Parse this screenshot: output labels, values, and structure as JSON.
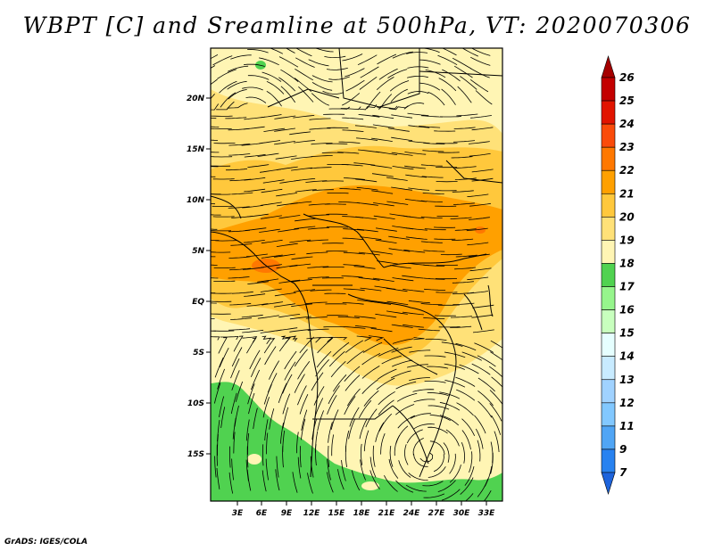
{
  "title": "WBPT [C] and Sreamline at 500hPa, VT: 2020070306",
  "footer": "GrADS: IGES/COLA",
  "map": {
    "lon_ticks": [
      "3E",
      "6E",
      "9E",
      "12E",
      "15E",
      "18E",
      "21E",
      "24E",
      "27E",
      "30E",
      "33E"
    ],
    "lat_ticks": [
      "20N",
      "15N",
      "10N",
      "5N",
      "EQ",
      "5S",
      "10S",
      "15S"
    ],
    "variable": "WBPT [C]",
    "level": "500hPa"
  },
  "colorbar": {
    "labels": [
      "7",
      "9",
      "11",
      "12",
      "13",
      "14",
      "15",
      "16",
      "17",
      "18",
      "19",
      "20",
      "21",
      "22",
      "23",
      "24",
      "25",
      "26"
    ],
    "colors": [
      "#1e64dc",
      "#2882f0",
      "#50a5f5",
      "#82c8ff",
      "#a0d2ff",
      "#c8ebff",
      "#e6ffff",
      "#c8ffbe",
      "#96f58c",
      "#50d250",
      "#fff5b4",
      "#ffe178",
      "#ffc83c",
      "#ffa000",
      "#ff7800",
      "#fa4b0a",
      "#e11400",
      "#c30000",
      "#a50000"
    ]
  }
}
